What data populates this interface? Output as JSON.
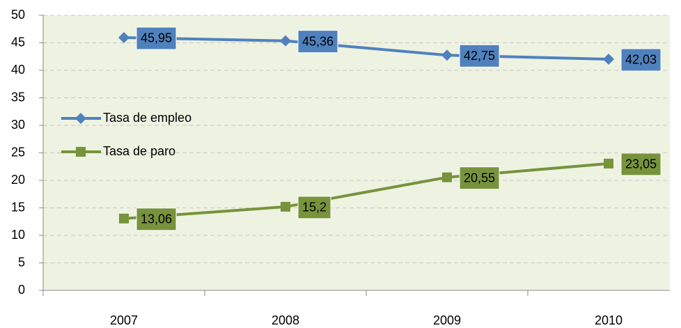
{
  "chart_data": {
    "type": "line",
    "categories": [
      "2007",
      "2008",
      "2009",
      "2010"
    ],
    "series": [
      {
        "name": "Tasa de empleo",
        "color": "#4f81bd",
        "marker": "diamond",
        "values": [
          45.95,
          45.36,
          42.75,
          42.03
        ],
        "value_labels": [
          "45,95",
          "45,36",
          "42,75",
          "42,03"
        ]
      },
      {
        "name": "Tasa de paro",
        "color": "#77933c",
        "marker": "square",
        "values": [
          13.06,
          15.2,
          20.55,
          23.05
        ],
        "value_labels": [
          "13,06",
          "15,2",
          "20,55",
          "23,05"
        ]
      }
    ],
    "ylim": [
      0,
      50
    ],
    "yticks": [
      0,
      5,
      10,
      15,
      20,
      25,
      30,
      35,
      40,
      45,
      50
    ],
    "grid": true,
    "legend": "left"
  }
}
